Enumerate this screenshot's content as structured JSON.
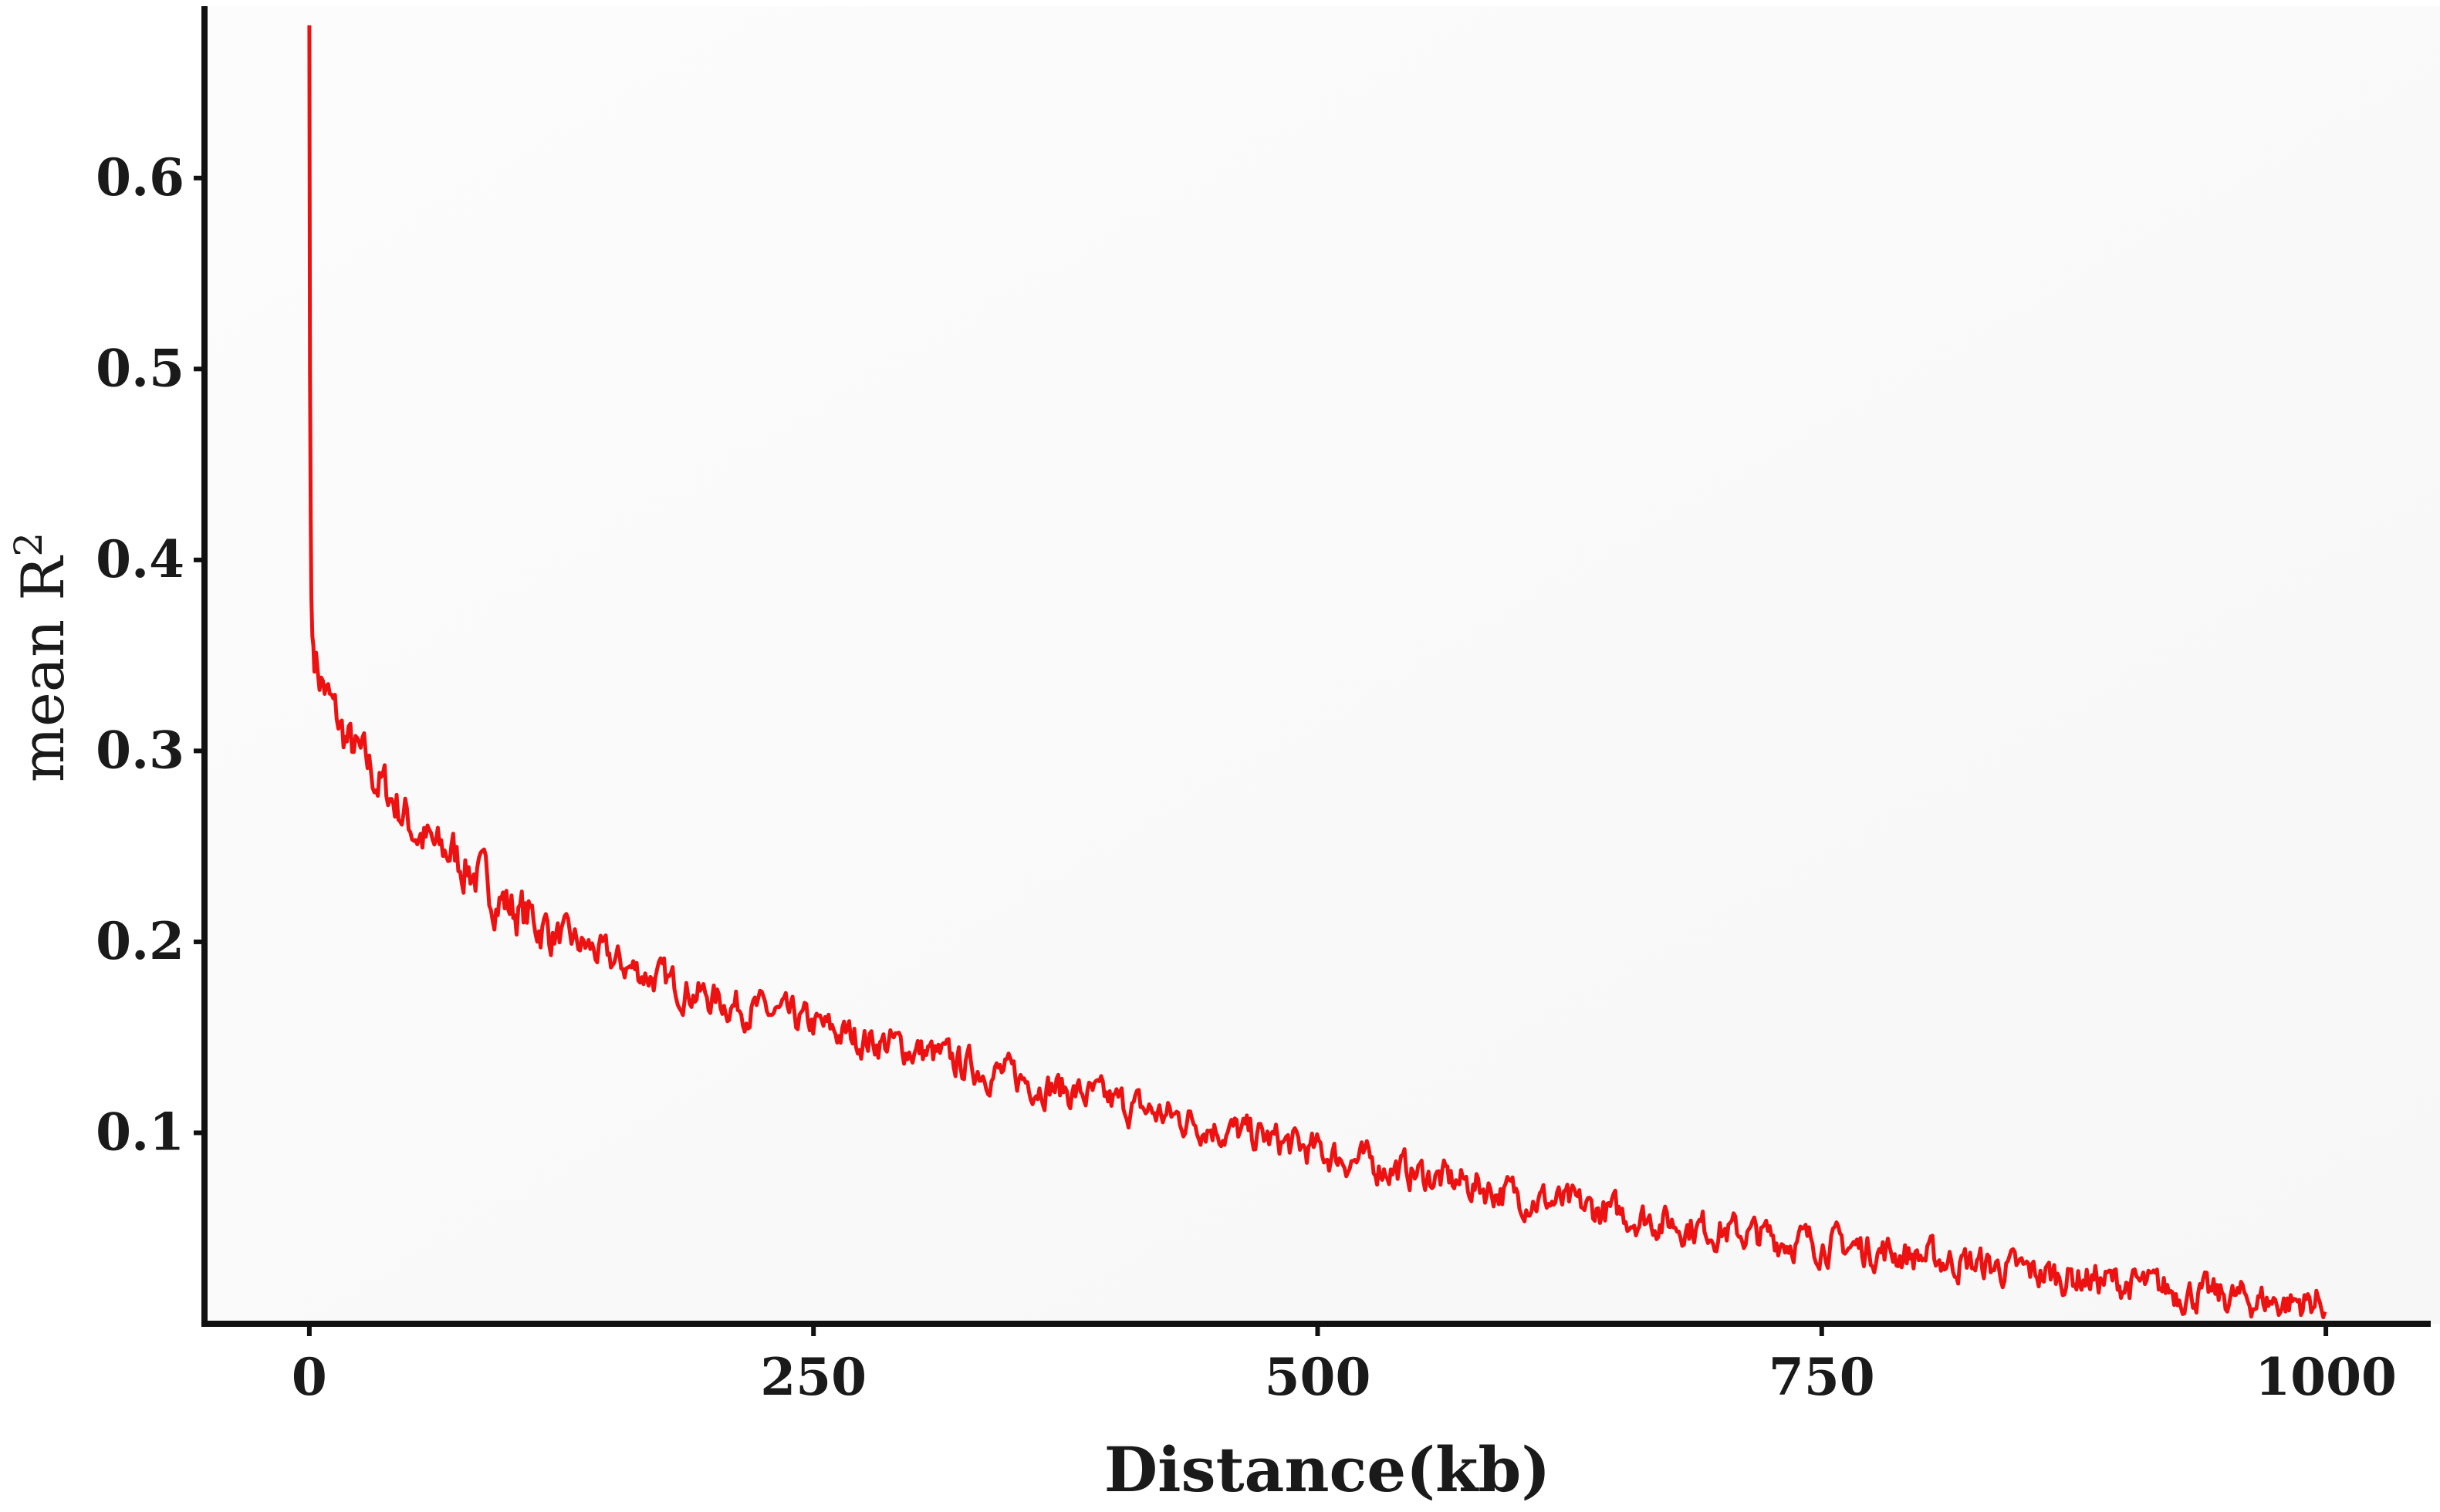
{
  "chart_data": {
    "type": "line",
    "title": "",
    "xlabel": "Distance(kb)",
    "ylabel": "mean R",
    "ylabel_superscript": "2",
    "xlim": [
      -52,
      1052
    ],
    "ylim": [
      0.0,
      0.69
    ],
    "xticks": [
      0,
      250,
      500,
      750,
      1000
    ],
    "xtick_labels": [
      "0",
      "250",
      "500",
      "750",
      "1000"
    ],
    "yticks": [
      0.1,
      0.2,
      0.3,
      0.4,
      0.5,
      0.6
    ],
    "ytick_labels": [
      "0.1",
      "0.2",
      "0.3",
      "0.4",
      "0.5",
      "0.6"
    ],
    "grid": false,
    "legend": "none",
    "series": [
      {
        "color": "#ee1111",
        "x": [
          0,
          0.3,
          0.7,
          1,
          1.5,
          2,
          3,
          4,
          5,
          7,
          10,
          13,
          16,
          20,
          25,
          30,
          35,
          40,
          45,
          50,
          55,
          60,
          65,
          70,
          75,
          80,
          85,
          90,
          95,
          100,
          110,
          120,
          130,
          140,
          150,
          160,
          170,
          180,
          190,
          200,
          215,
          230,
          245,
          260,
          275,
          290,
          305,
          320,
          335,
          350,
          365,
          380,
          395,
          410,
          425,
          440,
          455,
          470,
          485,
          500,
          520,
          540,
          560,
          580,
          600,
          620,
          640,
          660,
          680,
          700,
          720,
          740,
          760,
          780,
          800,
          820,
          840,
          860,
          880,
          900,
          920,
          940,
          960,
          980,
          1000
        ],
        "y": [
          0.68,
          0.5,
          0.42,
          0.38,
          0.36,
          0.355,
          0.35,
          0.345,
          0.34,
          0.335,
          0.325,
          0.318,
          0.31,
          0.303,
          0.296,
          0.29,
          0.283,
          0.277,
          0.27,
          0.262,
          0.256,
          0.25,
          0.246,
          0.248,
          0.242,
          0.238,
          0.232,
          0.227,
          0.223,
          0.218,
          0.212,
          0.206,
          0.2,
          0.196,
          0.19,
          0.186,
          0.182,
          0.178,
          0.174,
          0.17,
          0.166,
          0.162,
          0.158,
          0.153,
          0.149,
          0.146,
          0.142,
          0.137,
          0.133,
          0.129,
          0.125,
          0.121,
          0.117,
          0.113,
          0.109,
          0.106,
          0.101,
          0.098,
          0.094,
          0.09,
          0.085,
          0.081,
          0.076,
          0.072,
          0.067,
          0.063,
          0.059,
          0.056,
          0.052,
          0.049,
          0.046,
          0.043,
          0.041,
          0.038,
          0.035,
          0.032,
          0.029,
          0.026,
          0.024,
          0.021,
          0.018,
          0.015,
          0.013,
          0.011,
          0.012
        ]
      }
    ]
  }
}
